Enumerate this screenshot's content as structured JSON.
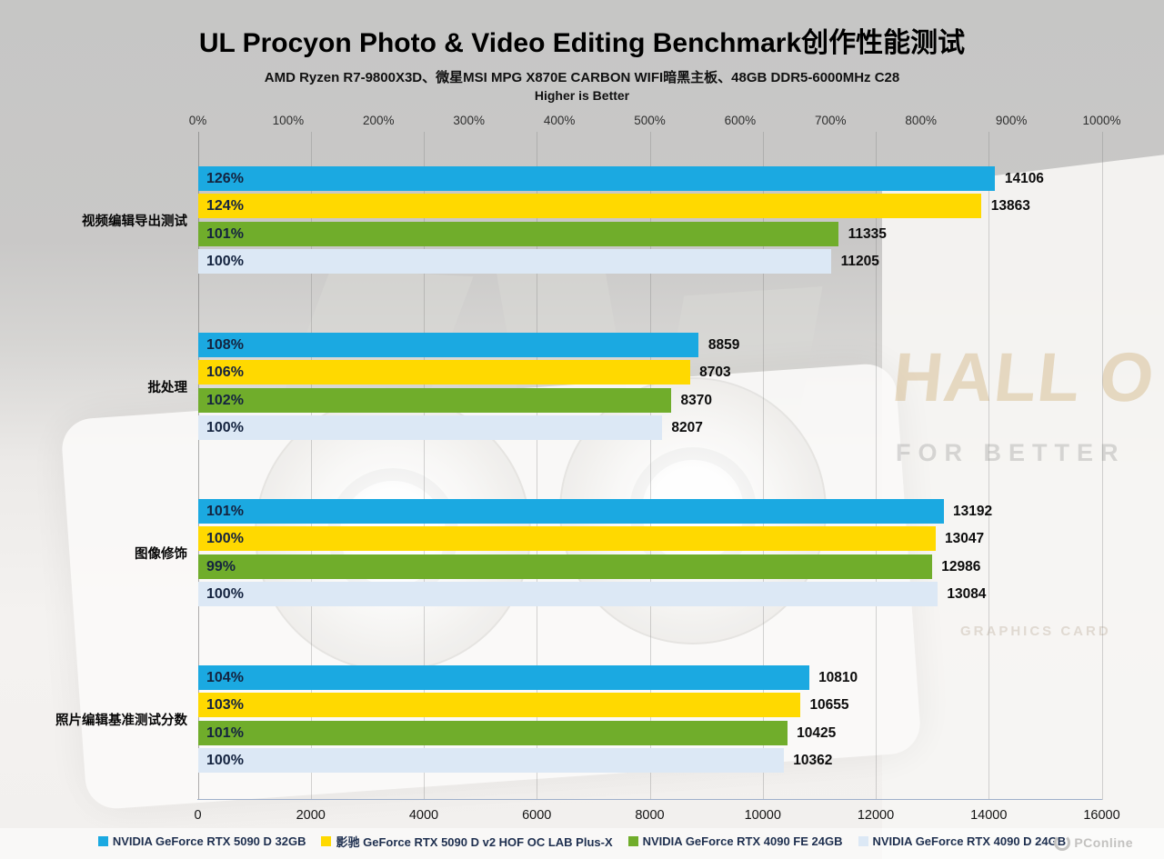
{
  "header": {
    "title": "UL Procyon Photo & Video Editing Benchmark创作性能测试",
    "subtitle": "AMD Ryzen R7-9800X3D、微星MSI MPG X870E CARBON  WIFI暗黑主板、48GB DDR5-6000MHz C28",
    "note": "Higher is Better"
  },
  "chart_data": {
    "type": "bar",
    "orientation": "horizontal",
    "categories": [
      "视频编辑导出测试",
      "批处理",
      "图像修饰",
      "照片编辑基准测试分数"
    ],
    "series": [
      {
        "name": "NVIDIA GeForce RTX 5090 D 32GB",
        "color": "#1BA9E1",
        "values": [
          14106,
          8859,
          13192,
          10810
        ],
        "percent_labels": [
          "126%",
          "108%",
          "101%",
          "104%"
        ]
      },
      {
        "name": "影驰 GeForce RTX 5090 D v2 HOF OC LAB Plus-X",
        "color": "#FFD900",
        "values": [
          13863,
          8703,
          13047,
          10655
        ],
        "percent_labels": [
          "124%",
          "106%",
          "100%",
          "103%"
        ]
      },
      {
        "name": "NVIDIA GeForce RTX 4090 FE 24GB",
        "color": "#70AD2B",
        "values": [
          11335,
          8370,
          12986,
          10425
        ],
        "percent_labels": [
          "101%",
          "102%",
          "99%",
          "101%"
        ]
      },
      {
        "name": "NVIDIA GeForce RTX 4090 D 24GB",
        "color": "#DCE8F5",
        "values": [
          11205,
          8207,
          13084,
          10362
        ],
        "percent_labels": [
          "100%",
          "100%",
          "100%",
          "100%"
        ]
      }
    ],
    "top_axis": {
      "min": 0,
      "max": 1000,
      "ticks": [
        "0%",
        "100%",
        "200%",
        "300%",
        "400%",
        "500%",
        "600%",
        "700%",
        "800%",
        "900%",
        "1000%"
      ]
    },
    "bottom_axis": {
      "min": 0,
      "max": 16000,
      "ticks": [
        "0",
        "2000",
        "4000",
        "6000",
        "8000",
        "10000",
        "12000",
        "14000",
        "16000"
      ]
    },
    "grid": true,
    "legend_position": "bottom",
    "xlim": [
      0,
      16000
    ]
  },
  "watermark": {
    "hof_text": "HALL O",
    "tagline": "FOR BETTER",
    "card_text": "GRAPHICS CARD",
    "brand": "PConline"
  }
}
